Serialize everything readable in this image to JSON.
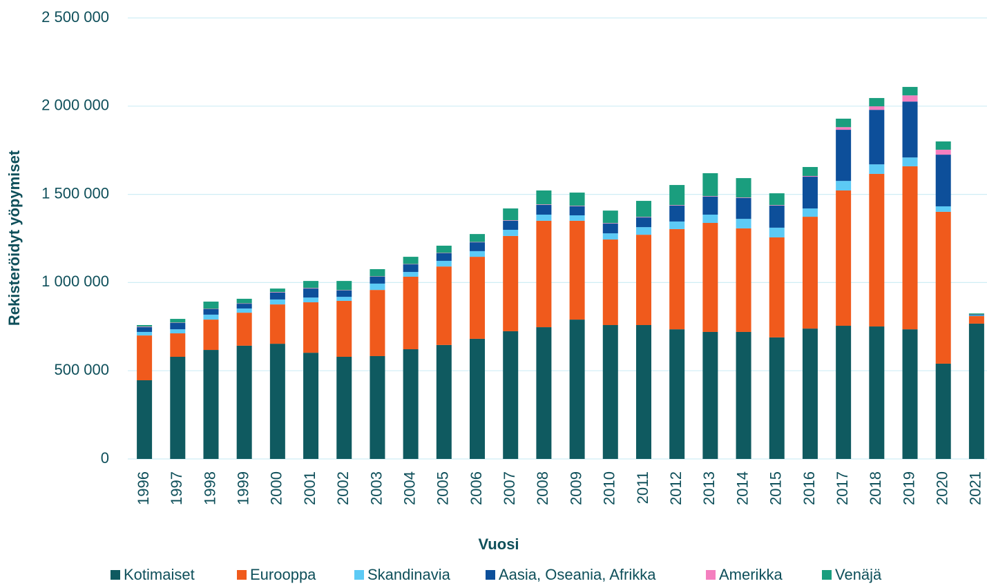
{
  "chart_data": {
    "type": "stacked_bar",
    "x_label": "Vuosi",
    "y_label": "Rekisteröidyt yöpymiset",
    "categories": [
      "1996",
      "1997",
      "1998",
      "1999",
      "2000",
      "2001",
      "2002",
      "2003",
      "2004",
      "2005",
      "2006",
      "2007",
      "2008",
      "2009",
      "2010",
      "2011",
      "2012",
      "2013",
      "2014",
      "2015",
      "2016",
      "2017",
      "2018",
      "2019",
      "2020",
      "2021"
    ],
    "ylim": [
      0,
      2500000
    ],
    "yticks": [
      0,
      {
        "value": 500000,
        "label": "500 000"
      },
      {
        "value": 1000000,
        "label": "1 000 000"
      },
      {
        "value": 1500000,
        "label": "1 500 000"
      },
      {
        "value": 2000000,
        "label": "2 000 000"
      },
      {
        "value": 2500000,
        "label": "2 500 000"
      }
    ],
    "grid": true,
    "legend": "bottom",
    "series": [
      {
        "name": "Kotimaiset",
        "color": "#0f5a60",
        "values": [
          446000,
          579000,
          618000,
          642000,
          653000,
          602000,
          579000,
          583000,
          622000,
          646000,
          681000,
          724000,
          747000,
          790000,
          759000,
          759000,
          735000,
          720000,
          720000,
          689000,
          739000,
          755000,
          751000,
          735000,
          540000,
          767000
        ]
      },
      {
        "name": "Eurooppa",
        "color": "#f05a1c",
        "values": [
          254000,
          133000,
          172000,
          187000,
          223000,
          286000,
          317000,
          375000,
          411000,
          445000,
          465000,
          540000,
          603000,
          560000,
          485000,
          512000,
          568000,
          618000,
          587000,
          567000,
          634000,
          767000,
          865000,
          924000,
          861000,
          43000
        ]
      },
      {
        "name": "Skandinavia",
        "color": "#5ccaf5",
        "values": [
          20000,
          23000,
          28000,
          24000,
          28000,
          27000,
          23000,
          36000,
          27000,
          32000,
          32000,
          35000,
          35000,
          31000,
          35000,
          43000,
          43000,
          47000,
          54000,
          55000,
          47000,
          54000,
          54000,
          50000,
          31000,
          4000
        ]
      },
      {
        "name": "Aasia, Oseania, Afrikka",
        "color": "#0d4f9a",
        "values": [
          27000,
          36000,
          31000,
          27000,
          39000,
          51000,
          36000,
          39000,
          43000,
          43000,
          50000,
          51000,
          55000,
          51000,
          55000,
          55000,
          90000,
          102000,
          118000,
          125000,
          180000,
          290000,
          309000,
          317000,
          293000,
          4000
        ]
      },
      {
        "name": "Amerikka",
        "color": "#f47fbf",
        "values": [
          3000,
          2000,
          2000,
          2000,
          3000,
          3000,
          2000,
          2000,
          2000,
          2000,
          2000,
          3000,
          3000,
          3000,
          3000,
          3000,
          3000,
          3000,
          3000,
          3000,
          4000,
          15000,
          20000,
          35000,
          28000,
          1000
        ]
      },
      {
        "name": "Venäjä",
        "color": "#1a9e7e",
        "values": [
          9000,
          21000,
          41000,
          26000,
          20000,
          40000,
          52000,
          41000,
          41000,
          41000,
          45000,
          67000,
          79000,
          75000,
          71000,
          91000,
          114000,
          130000,
          110000,
          67000,
          51000,
          48000,
          47000,
          48000,
          47000,
          6000
        ]
      }
    ]
  }
}
